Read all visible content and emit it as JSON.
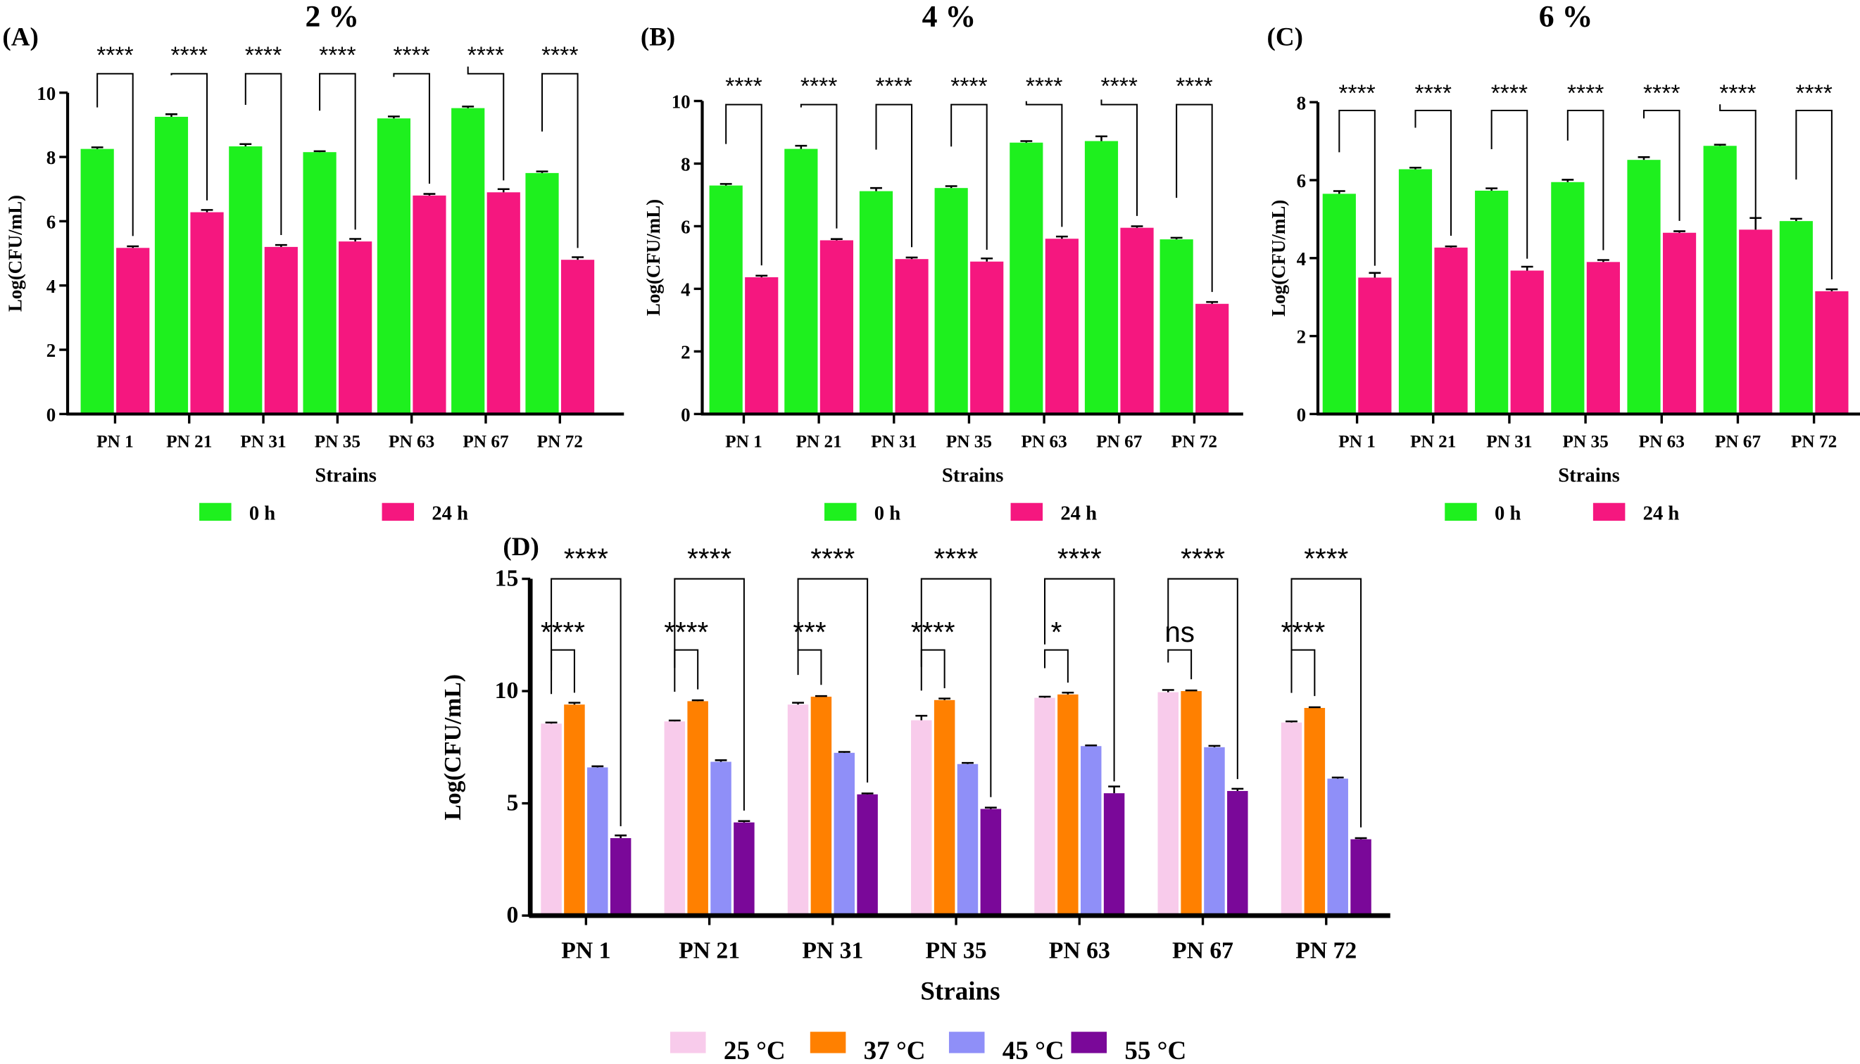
{
  "chart_data": [
    {
      "id": "A",
      "type": "bar",
      "panel_label": "(A)",
      "title": "2 %",
      "xlabel": "Strains",
      "ylabel": "Log(CFU/mL)",
      "ylim": [
        0,
        10
      ],
      "yticks": [
        0,
        2,
        4,
        6,
        8,
        10
      ],
      "categories": [
        "PN 1",
        "PN 21",
        "PN 31",
        "PN 35",
        "PN 63",
        "PN 67",
        "PN 72"
      ],
      "series": [
        {
          "name": "0 h",
          "color": "#1ef01e",
          "values": [
            8.25,
            9.25,
            8.33,
            8.15,
            9.2,
            9.52,
            7.5
          ],
          "errors": [
            0.05,
            0.08,
            0.07,
            0.03,
            0.06,
            0.05,
            0.05
          ]
        },
        {
          "name": "24 h",
          "color": "#f5177f",
          "values": [
            5.17,
            6.28,
            5.2,
            5.37,
            6.8,
            6.9,
            4.8
          ],
          "errors": [
            0.05,
            0.07,
            0.06,
            0.08,
            0.05,
            0.1,
            0.08
          ]
        }
      ],
      "significance": [
        {
          "pair": [
            0,
            1
          ],
          "labels": [
            "****",
            "****",
            "****",
            "****",
            "****",
            "****",
            "****"
          ]
        }
      ]
    },
    {
      "id": "B",
      "type": "bar",
      "panel_label": "(B)",
      "title": "4 %",
      "xlabel": "Strains",
      "ylabel": "Log(CFU/mL)",
      "ylim": [
        0,
        10
      ],
      "yticks": [
        0,
        2,
        4,
        6,
        8,
        10
      ],
      "categories": [
        "PN 1",
        "PN 21",
        "PN 31",
        "PN 35",
        "PN 63",
        "PN 67",
        "PN 72"
      ],
      "series": [
        {
          "name": "0 h",
          "color": "#1ef01e",
          "values": [
            7.3,
            8.47,
            7.12,
            7.22,
            8.67,
            8.72,
            5.58
          ],
          "errors": [
            0.05,
            0.1,
            0.1,
            0.06,
            0.05,
            0.15,
            0.05
          ]
        },
        {
          "name": "24 h",
          "color": "#f5177f",
          "values": [
            4.37,
            5.55,
            4.95,
            4.87,
            5.6,
            5.95,
            3.52
          ],
          "errors": [
            0.05,
            0.04,
            0.05,
            0.1,
            0.07,
            0.05,
            0.06
          ]
        }
      ],
      "significance": [
        {
          "pair": [
            0,
            1
          ],
          "labels": [
            "****",
            "****",
            "****",
            "****",
            "****",
            "****",
            "****"
          ]
        }
      ]
    },
    {
      "id": "C",
      "type": "bar",
      "panel_label": "(C)",
      "title": "6 %",
      "xlabel": "Strains",
      "ylabel": "Log(CFU/mL)",
      "ylim": [
        0,
        8
      ],
      "yticks": [
        0,
        2,
        4,
        6,
        8
      ],
      "categories": [
        "PN 1",
        "PN 21",
        "PN 31",
        "PN 35",
        "PN 63",
        "PN 67",
        "PN 72"
      ],
      "series": [
        {
          "name": "0 h",
          "color": "#1ef01e",
          "values": [
            5.65,
            6.28,
            5.73,
            5.95,
            6.52,
            6.88,
            4.95
          ],
          "errors": [
            0.07,
            0.04,
            0.06,
            0.06,
            0.07,
            0.03,
            0.06
          ]
        },
        {
          "name": "24 h",
          "color": "#f5177f",
          "values": [
            3.5,
            4.27,
            3.68,
            3.9,
            4.65,
            4.73,
            3.15
          ],
          "errors": [
            0.12,
            0.03,
            0.1,
            0.05,
            0.04,
            0.3,
            0.05
          ]
        }
      ],
      "significance": [
        {
          "pair": [
            0,
            1
          ],
          "labels": [
            "****",
            "****",
            "****",
            "****",
            "****",
            "****",
            "****"
          ]
        }
      ]
    },
    {
      "id": "D",
      "type": "bar",
      "panel_label": "(D)",
      "title": "",
      "xlabel": "Strains",
      "ylabel": "Log(CFU/mL)",
      "ylim": [
        0,
        15
      ],
      "yticks": [
        0,
        5,
        10,
        15
      ],
      "categories": [
        "PN 1",
        "PN 21",
        "PN 31",
        "PN 35",
        "PN 63",
        "PN 67",
        "PN 72"
      ],
      "series": [
        {
          "name": "25 °C",
          "color": "#f8cbeb",
          "values": [
            8.55,
            8.65,
            9.4,
            8.7,
            9.7,
            9.95,
            8.6
          ],
          "errors": [
            0.05,
            0.04,
            0.08,
            0.2,
            0.05,
            0.1,
            0.05
          ]
        },
        {
          "name": "37 °C",
          "color": "#ff8000",
          "values": [
            9.4,
            9.55,
            9.75,
            9.6,
            9.85,
            10.0,
            9.25
          ],
          "errors": [
            0.08,
            0.04,
            0.03,
            0.07,
            0.08,
            0.03,
            0.03
          ]
        },
        {
          "name": "45 °C",
          "color": "#8f8ff8",
          "values": [
            6.6,
            6.85,
            7.25,
            6.75,
            7.55,
            7.5,
            6.1
          ],
          "errors": [
            0.05,
            0.07,
            0.04,
            0.05,
            0.03,
            0.06,
            0.05
          ]
        },
        {
          "name": "55 °C",
          "color": "#7a0899",
          "values": [
            3.45,
            4.15,
            5.4,
            4.75,
            5.45,
            5.55,
            3.4
          ],
          "errors": [
            0.12,
            0.06,
            0.04,
            0.06,
            0.3,
            0.1,
            0.05
          ]
        }
      ],
      "significance": [
        {
          "pair": [
            0,
            3
          ],
          "labels": [
            "****",
            "****",
            "****",
            "****",
            "****",
            "****",
            "****"
          ]
        },
        {
          "pair": [
            0,
            1
          ],
          "labels": [
            "****",
            "****",
            "***",
            "****",
            "*",
            "ns",
            "****"
          ]
        }
      ]
    }
  ]
}
